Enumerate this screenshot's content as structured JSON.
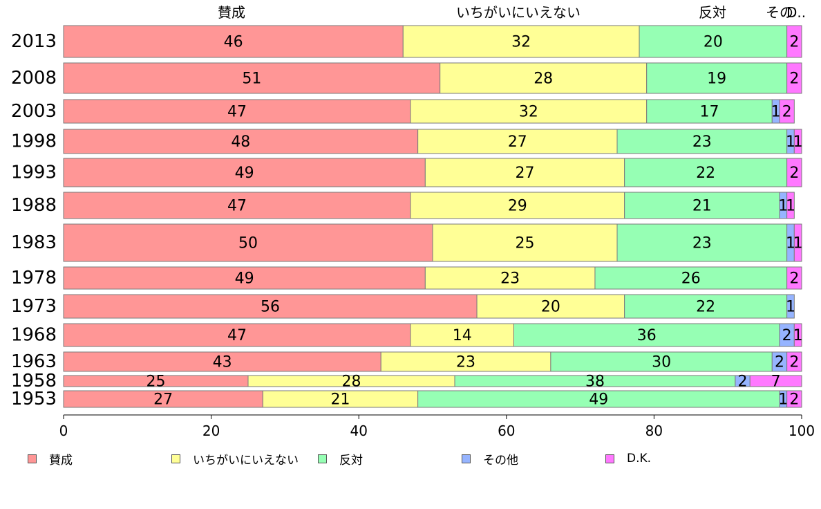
{
  "chart_data": {
    "type": "bar",
    "orientation": "horizontal",
    "stacked": true,
    "categories": [
      "2013",
      "2008",
      "2003",
      "1998",
      "1993",
      "1988",
      "1983",
      "1978",
      "1973",
      "1968",
      "1963",
      "1958",
      "1953"
    ],
    "series": [
      {
        "name": "賛成",
        "color": "#FF9696",
        "values": [
          46,
          51,
          47,
          48,
          49,
          47,
          50,
          49,
          56,
          47,
          43,
          25,
          27
        ]
      },
      {
        "name": "いちがいにいえない",
        "color": "#FFFF96",
        "values": [
          32,
          28,
          32,
          27,
          27,
          29,
          25,
          23,
          20,
          14,
          23,
          28,
          21
        ]
      },
      {
        "name": "反対",
        "color": "#96FFB4",
        "values": [
          20,
          19,
          17,
          23,
          22,
          21,
          23,
          26,
          22,
          36,
          30,
          38,
          49
        ]
      },
      {
        "name": "その他",
        "color": "#96B4FF",
        "values": [
          0,
          0,
          1,
          1,
          0,
          1,
          1,
          0,
          1,
          2,
          2,
          2,
          1
        ]
      },
      {
        "name": "D.K.",
        "color": "#FF78FF",
        "values": [
          2,
          2,
          2,
          1,
          2,
          1,
          1,
          2,
          0,
          1,
          2,
          7,
          2
        ]
      }
    ],
    "top_labels": [
      "賛成",
      "いちがいにいえない",
      "反対",
      "その",
      "D.."
    ],
    "xlim": [
      0,
      100
    ],
    "xticks": [
      "0",
      "20",
      "40",
      "60",
      "80",
      "100"
    ],
    "legend": "bottom",
    "grid": false
  },
  "legend": {
    "items": [
      "賛成",
      "いちがいにいえない",
      "反対",
      "その他",
      "D.K."
    ]
  }
}
